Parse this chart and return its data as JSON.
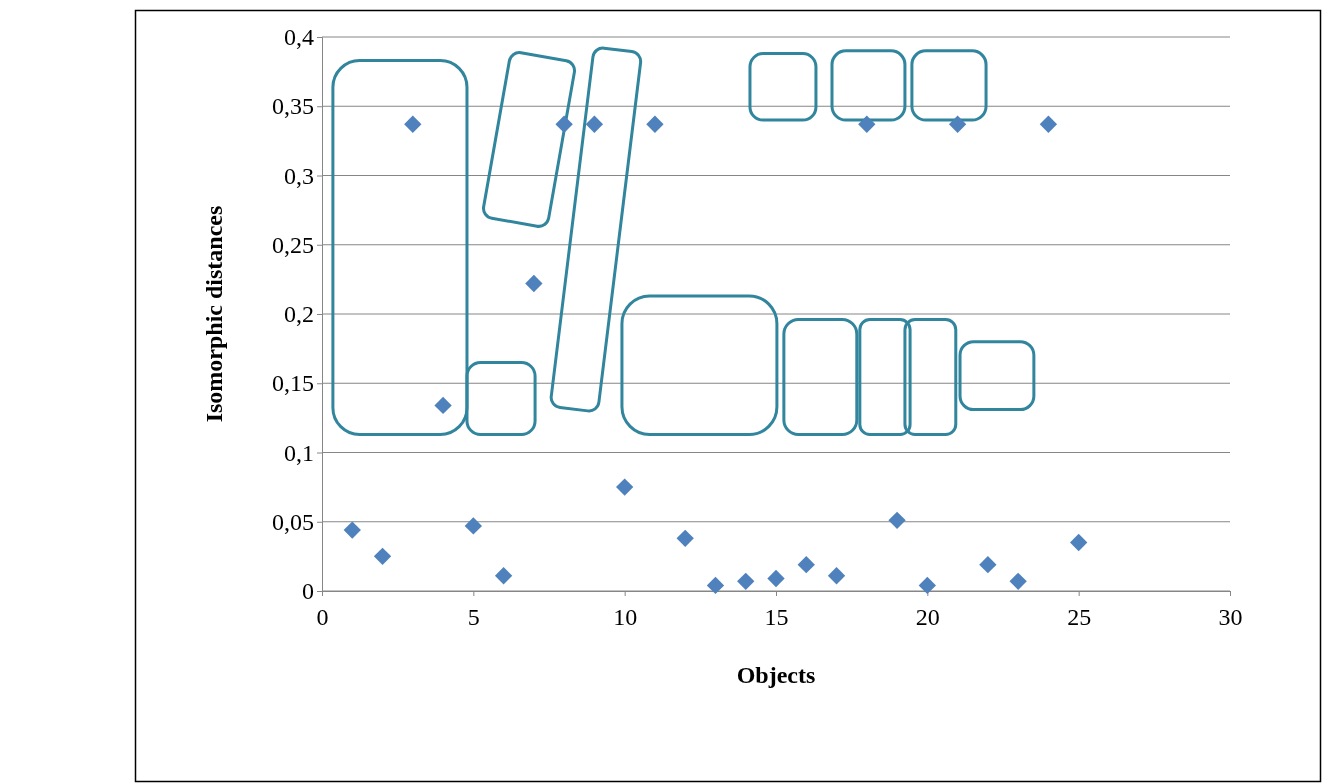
{
  "chart_data": {
    "type": "scatter",
    "xlabel": "Objects",
    "ylabel": "Isomorphic distances",
    "x": [
      1,
      2,
      3,
      4,
      5,
      6,
      7,
      8,
      9,
      10,
      11,
      12,
      13,
      14,
      15,
      16,
      17,
      18,
      19,
      20,
      21,
      22,
      23,
      24,
      25
    ],
    "series": [
      {
        "color": "#4f81bd",
        "values": [
          0.044,
          0.025,
          0.337,
          0.134,
          0.047,
          0.011,
          0.222,
          0.337,
          0.337,
          0.075,
          0.337,
          0.038,
          0.004,
          0.007,
          0.009,
          0.019,
          0.011,
          0.337,
          0.051,
          0.004,
          0.337,
          0.019,
          0.007,
          0.337,
          0.035
        ]
      }
    ],
    "xlim": [
      0,
      30
    ],
    "xticks": [
      0,
      5,
      10,
      15,
      20,
      25,
      30
    ],
    "ylim": [
      0,
      0.4
    ],
    "yticks": [
      0,
      {
        "value": 0.05,
        "label": "0,05"
      },
      {
        "value": 0.1,
        "label": "0,1"
      },
      {
        "value": 0.15,
        "label": "0,15"
      },
      {
        "value": 0.2,
        "label": "0,2"
      },
      {
        "value": 0.25,
        "label": "0,25"
      },
      {
        "value": 0.3,
        "label": "0,3"
      },
      {
        "value": 0.35,
        "label": "0,35"
      },
      {
        "value": 0.4,
        "label": "0,4"
      }
    ],
    "grid": "y",
    "marker": "diamond"
  }
}
